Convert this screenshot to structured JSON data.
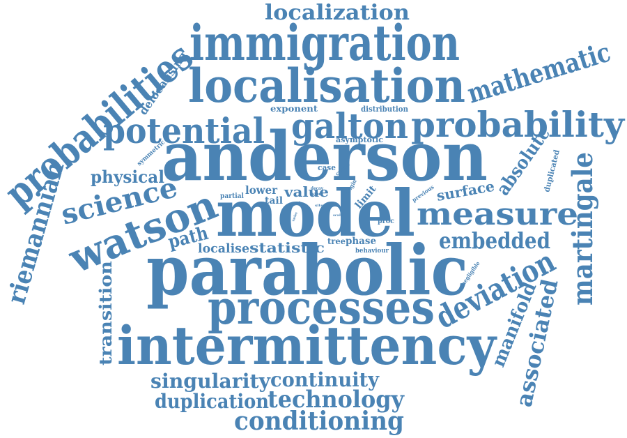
{
  "color": "#4a83b4",
  "words": [
    {
      "text": "anderson",
      "size": 96
    },
    {
      "text": "model",
      "size": 92
    },
    {
      "text": "parabolic",
      "size": 98
    },
    {
      "text": "intermittency",
      "size": 76
    },
    {
      "text": "immigration",
      "size": 70
    },
    {
      "text": "localisation",
      "size": 66
    },
    {
      "text": "processes",
      "size": 66
    },
    {
      "text": "probabilities",
      "size": 56
    },
    {
      "text": "watson",
      "size": 58
    },
    {
      "text": "galton",
      "size": 50
    },
    {
      "text": "probability",
      "size": 50
    },
    {
      "text": "potential",
      "size": 50
    },
    {
      "text": "measure",
      "size": 44
    },
    {
      "text": "deviation",
      "size": 44
    },
    {
      "text": "martingale",
      "size": 40
    },
    {
      "text": "mathematic",
      "size": 38
    },
    {
      "text": "science",
      "size": 40
    },
    {
      "text": "riemannian",
      "size": 36
    },
    {
      "text": "conditioning",
      "size": 36
    },
    {
      "text": "technology",
      "size": 34
    },
    {
      "text": "embedded",
      "size": 32
    },
    {
      "text": "associated",
      "size": 32
    },
    {
      "text": "localization",
      "size": 30
    },
    {
      "text": "singularity",
      "size": 28
    },
    {
      "text": "continuity",
      "size": 28
    },
    {
      "text": "duplication",
      "size": 28
    },
    {
      "text": "absolute",
      "size": 26
    },
    {
      "text": "manifold",
      "size": 26
    },
    {
      "text": "transition",
      "size": 24
    },
    {
      "text": "path",
      "size": 26
    },
    {
      "text": "physical",
      "size": 24
    },
    {
      "text": "surface",
      "size": 20
    },
    {
      "text": "statistic",
      "size": 20
    },
    {
      "text": "localise",
      "size": 18
    },
    {
      "text": "value",
      "size": 20
    },
    {
      "text": "delocalising",
      "size": 16
    },
    {
      "text": "lower",
      "size": 16
    },
    {
      "text": "limit",
      "size": 14
    },
    {
      "text": "tail",
      "size": 14
    },
    {
      "text": "phase",
      "size": 14
    },
    {
      "text": "tree",
      "size": 12
    },
    {
      "text": "exponent",
      "size": 12
    },
    {
      "text": "asymptotic",
      "size": 11
    },
    {
      "text": "distribution",
      "size": 11
    },
    {
      "text": "duplicated",
      "size": 11
    },
    {
      "text": "case",
      "size": 11
    },
    {
      "text": "partial",
      "size": 10
    },
    {
      "text": "symmetric",
      "size": 9
    },
    {
      "text": "proc",
      "size": 10
    },
    {
      "text": "behaviour",
      "size": 9
    },
    {
      "text": "negligible",
      "size": 8
    },
    {
      "text": "previous",
      "size": 8
    },
    {
      "text": "origin",
      "size": 8
    },
    {
      "text": "critical",
      "size": 7
    },
    {
      "text": "decay",
      "size": 6
    },
    {
      "text": "paper",
      "size": 6
    },
    {
      "text": "work",
      "size": 5
    },
    {
      "text": "site",
      "size": 5
    },
    {
      "text": "varies",
      "size": 5
    },
    {
      "text": "scale",
      "size": 5
    }
  ]
}
